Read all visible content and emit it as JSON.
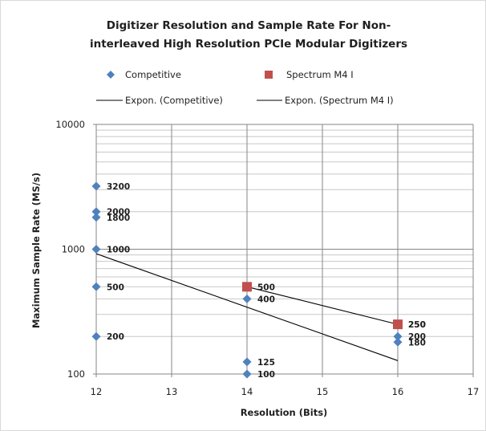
{
  "chart_data": {
    "type": "scatter",
    "title_lines": [
      "Digitizer Resolution and Sample Rate For Non-",
      "interleaved High Resolution PCIe Modular Digitizers"
    ],
    "xlabel": "Resolution (Bits)",
    "ylabel": "Maximum Sample Rate (MS/s)",
    "xlim": [
      12,
      17
    ],
    "ylim": [
      100,
      10000
    ],
    "y_scale": "log",
    "x_ticks": [
      "12",
      "13",
      "14",
      "15",
      "16",
      "17"
    ],
    "y_ticks": [
      "100",
      "1000",
      "10000"
    ],
    "grid": true,
    "legend_position": "top",
    "series": [
      {
        "name": "Competitive",
        "marker": "diamond",
        "color": "#4f81bd",
        "points": [
          {
            "x": 12,
            "y": 3200,
            "label": "3200"
          },
          {
            "x": 12,
            "y": 2000,
            "label": "2000"
          },
          {
            "x": 12,
            "y": 1800,
            "label": "1800"
          },
          {
            "x": 12,
            "y": 1000,
            "label": "1000"
          },
          {
            "x": 12,
            "y": 500,
            "label": "500"
          },
          {
            "x": 12,
            "y": 200,
            "label": "200"
          },
          {
            "x": 14,
            "y": 400,
            "label": "400"
          },
          {
            "x": 14,
            "y": 125,
            "label": "125"
          },
          {
            "x": 14,
            "y": 100,
            "label": "100"
          },
          {
            "x": 16,
            "y": 250,
            "label": "250"
          },
          {
            "x": 16,
            "y": 200,
            "label": "200"
          },
          {
            "x": 16,
            "y": 180,
            "label": "180"
          }
        ]
      },
      {
        "name": "Spectrum M4 I",
        "marker": "square",
        "color": "#c0504d",
        "points": [
          {
            "x": 14,
            "y": 500,
            "label": "500"
          },
          {
            "x": 16,
            "y": 250,
            "label": "250"
          }
        ]
      }
    ],
    "trendlines": [
      {
        "name": "Expon. (Competitive)",
        "color": "#000000",
        "from": {
          "x": 12,
          "y": 920
        },
        "to": {
          "x": 16,
          "y": 128
        }
      },
      {
        "name": "Expon. (Spectrum M4 I)",
        "color": "#000000",
        "from": {
          "x": 14,
          "y": 500
        },
        "to": {
          "x": 16,
          "y": 250
        }
      }
    ]
  }
}
